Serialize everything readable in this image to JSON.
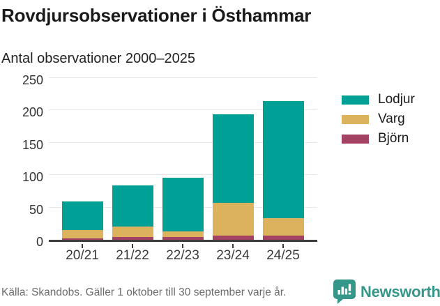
{
  "header": {
    "title": "Rovdjursobservationer i Östhammar",
    "subtitle": "Antal observationer 2000–2025"
  },
  "chart_data": {
    "type": "bar",
    "stacked": true,
    "title": "Rovdjursobservationer i Östhammar",
    "subtitle": "Antal observationer 2000–2025",
    "categories": [
      "20/21",
      "21/22",
      "22/23",
      "23/24",
      "24/25"
    ],
    "series": [
      {
        "name": "Lodjur",
        "color": "#00a096",
        "values": [
          44,
          64,
          83,
          137,
          182
        ]
      },
      {
        "name": "Varg",
        "color": "#ddb25c",
        "values": [
          13,
          16,
          9,
          51,
          26
        ]
      },
      {
        "name": "Björn",
        "color": "#a34262",
        "values": [
          2,
          4,
          4,
          6,
          7
        ]
      }
    ],
    "totals": [
      59,
      84,
      96,
      194,
      215
    ],
    "xlabel": "",
    "ylabel": "",
    "ylim": [
      0,
      250
    ],
    "yticks": [
      0,
      50,
      100,
      150,
      200,
      250
    ],
    "grid": true,
    "legend_position": "right"
  },
  "colors": {
    "axis": "#3c3c3c",
    "gridline": "#e7e7e7",
    "brand_teal": "#35968a"
  },
  "footer": {
    "source": "Källa: Skandobs. Gäller 1 oktober till 30 september varje år.",
    "brand": "Newsworthy"
  }
}
